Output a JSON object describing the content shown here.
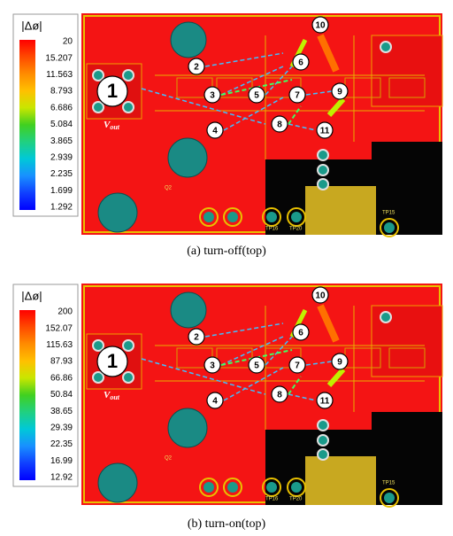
{
  "panels": [
    {
      "colorbar": {
        "title": "|Δø|",
        "labels": [
          "20",
          "15.207",
          "11.563",
          "8.793",
          "6.686",
          "5.084",
          "3.865",
          "2.939",
          "2.235",
          "1.699",
          "1.292"
        ]
      },
      "nodes": [
        "1",
        "2",
        "3",
        "4",
        "5",
        "6",
        "7",
        "8",
        "9",
        "10",
        "11"
      ],
      "vout": {
        "main": "V",
        "sub": "out"
      },
      "silkscreen": [
        "Q2",
        "TP15",
        "TP16",
        "TP20"
      ],
      "caption": "(a)  turn-off(top)"
    },
    {
      "colorbar": {
        "title": "|Δø|",
        "labels": [
          "200",
          "152.07",
          "115.63",
          "87.93",
          "66.86",
          "50.84",
          "38.65",
          "29.39",
          "22.35",
          "16.99",
          "12.92"
        ]
      },
      "nodes": [
        "1",
        "2",
        "3",
        "4",
        "5",
        "6",
        "7",
        "8",
        "9",
        "10",
        "11"
      ],
      "vout": {
        "main": "V",
        "sub": "out"
      },
      "silkscreen": [
        "Q2",
        "TP15",
        "TP16",
        "TP20"
      ],
      "caption": "(b)  turn-on(top)"
    }
  ]
}
